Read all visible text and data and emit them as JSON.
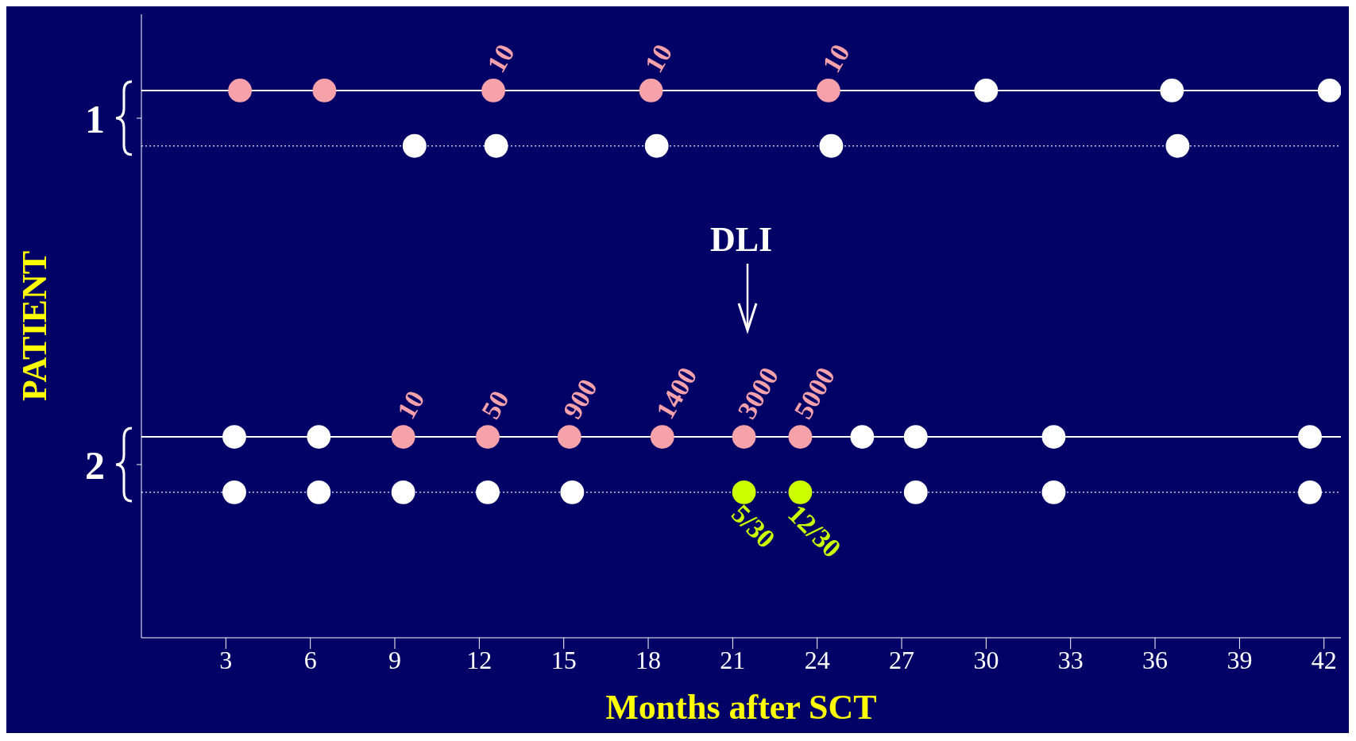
{
  "chart_data": {
    "type": "scatter",
    "xlabel": "Months after SCT",
    "ylabel": "PATIENT",
    "xlim": [
      0,
      42.6
    ],
    "xticks": [
      3,
      6,
      9,
      12,
      15,
      18,
      21,
      24,
      27,
      30,
      33,
      36,
      39,
      42
    ],
    "ylim": [
      2.5,
      0.7
    ],
    "yticks": [
      1,
      2
    ],
    "marker": "circle",
    "series": [
      {
        "color": "#f7a1ab",
        "x": [
          3.5,
          6.5,
          12.5,
          18.1,
          24.4,
          9.3,
          12.3,
          15.2,
          18.5,
          21.4,
          23.4
        ],
        "values": [
          0.92,
          0.92,
          0.92,
          0.92,
          0.92,
          1.92,
          1.92,
          1.92,
          1.92,
          1.92,
          1.92
        ]
      },
      {
        "color": "#ffffff",
        "x": [
          30.0,
          36.6,
          42.2,
          3.3,
          6.3,
          25.6,
          27.5,
          32.4,
          41.5
        ],
        "values": [
          0.92,
          0.92,
          0.92,
          1.92,
          1.92,
          1.92,
          1.92,
          1.92,
          1.92
        ]
      },
      {
        "color": "#ffffff",
        "x": [
          9.7,
          12.6,
          18.3,
          24.5,
          36.8,
          3.3,
          6.3,
          9.3,
          12.3,
          15.3,
          27.5,
          32.4,
          41.5
        ],
        "values": [
          1.08,
          1.08,
          1.08,
          1.08,
          1.08,
          2.08,
          2.08,
          2.08,
          2.08,
          2.08,
          2.08,
          2.08,
          2.08
        ]
      },
      {
        "color": "#ccff00",
        "x": [
          21.4,
          23.4
        ],
        "values": [
          2.08,
          2.08
        ]
      }
    ],
    "ref_lines": [
      {
        "axis": "y",
        "value": 0.92,
        "color": "#ffffff",
        "line_style": "solid"
      },
      {
        "axis": "y",
        "value": 1.08,
        "color": "#c8c8e8",
        "line_style": "dotted"
      },
      {
        "axis": "y",
        "value": 1.92,
        "color": "#ffffff",
        "line_style": "solid"
      },
      {
        "axis": "y",
        "value": 2.08,
        "color": "#c8c8e8",
        "line_style": "dotted"
      }
    ],
    "annotations": [
      {
        "text": "10",
        "x": 12.5,
        "y": 0.92
      },
      {
        "text": "10",
        "x": 18.1,
        "y": 0.92
      },
      {
        "text": "10",
        "x": 24.4,
        "y": 0.92
      },
      {
        "text": "10",
        "x": 9.3,
        "y": 1.92
      },
      {
        "text": "50",
        "x": 12.3,
        "y": 1.92
      },
      {
        "text": "900",
        "x": 15.2,
        "y": 1.92
      },
      {
        "text": "1400",
        "x": 18.5,
        "y": 1.92
      },
      {
        "text": "3000",
        "x": 21.4,
        "y": 1.92
      },
      {
        "text": "5000",
        "x": 23.4,
        "y": 1.92
      },
      {
        "text": "5/30",
        "x": 21.4,
        "y": 2.08
      },
      {
        "text": "12/30",
        "x": 23.4,
        "y": 2.08
      },
      "DLI"
    ]
  }
}
